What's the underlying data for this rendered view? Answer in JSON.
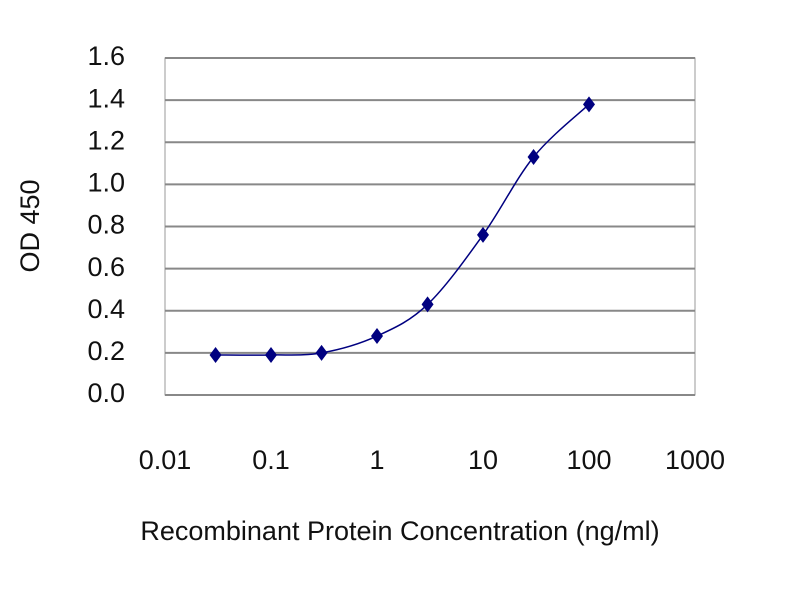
{
  "chart_data": {
    "type": "line",
    "x_label": "Recombinant Protein Concentration (ng/ml)",
    "y_label": "OD 450",
    "xscale": "log",
    "xlim": [
      0.01,
      1000
    ],
    "xticks": [
      0.01,
      0.1,
      1,
      10,
      100,
      1000
    ],
    "ylim": [
      0,
      1.6
    ],
    "yticks": [
      {
        "value": 0,
        "label": "0.0"
      },
      0.2,
      0.4,
      0.6,
      0.8,
      {
        "value": 1,
        "label": "1.0"
      },
      1.2,
      1.4,
      1.6
    ],
    "grid": true,
    "smooth": true,
    "series": [
      {
        "color": "#000080",
        "x": [
          0.03,
          0.1,
          0.3,
          1,
          3,
          10,
          30,
          100
        ],
        "values": [
          0.19,
          0.19,
          0.2,
          0.28,
          0.43,
          0.76,
          1.13,
          1.38
        ]
      }
    ]
  }
}
